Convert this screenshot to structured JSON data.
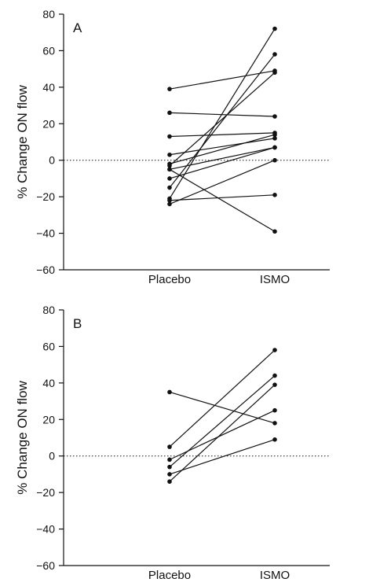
{
  "chart_data": [
    {
      "type": "line",
      "panel_label": "A",
      "ylabel": "% Change ON flow",
      "categories": [
        "Placebo",
        "ISMO"
      ],
      "ylim": [
        -60,
        80
      ],
      "yticks": [
        -60,
        -40,
        -20,
        0,
        20,
        40,
        60,
        80
      ],
      "reference_line": 0,
      "pairs": [
        [
          39,
          49
        ],
        [
          26,
          24
        ],
        [
          13,
          15
        ],
        [
          3,
          12
        ],
        [
          -2,
          14
        ],
        [
          -3,
          48
        ],
        [
          -5,
          7
        ],
        [
          -5,
          -39
        ],
        [
          -10,
          7
        ],
        [
          -15,
          58
        ],
        [
          -21,
          72
        ],
        [
          -22,
          -19
        ],
        [
          -24,
          0
        ]
      ]
    },
    {
      "type": "line",
      "panel_label": "B",
      "ylabel": "% Change ON flow",
      "categories": [
        "Placebo",
        "ISMO"
      ],
      "ylim": [
        -60,
        80
      ],
      "yticks": [
        -60,
        -40,
        -20,
        0,
        20,
        40,
        60,
        80
      ],
      "reference_line": 0,
      "pairs": [
        [
          35,
          18
        ],
        [
          5,
          58
        ],
        [
          -2,
          25
        ],
        [
          -6,
          44
        ],
        [
          -10,
          9
        ],
        [
          -14,
          39
        ]
      ]
    }
  ]
}
